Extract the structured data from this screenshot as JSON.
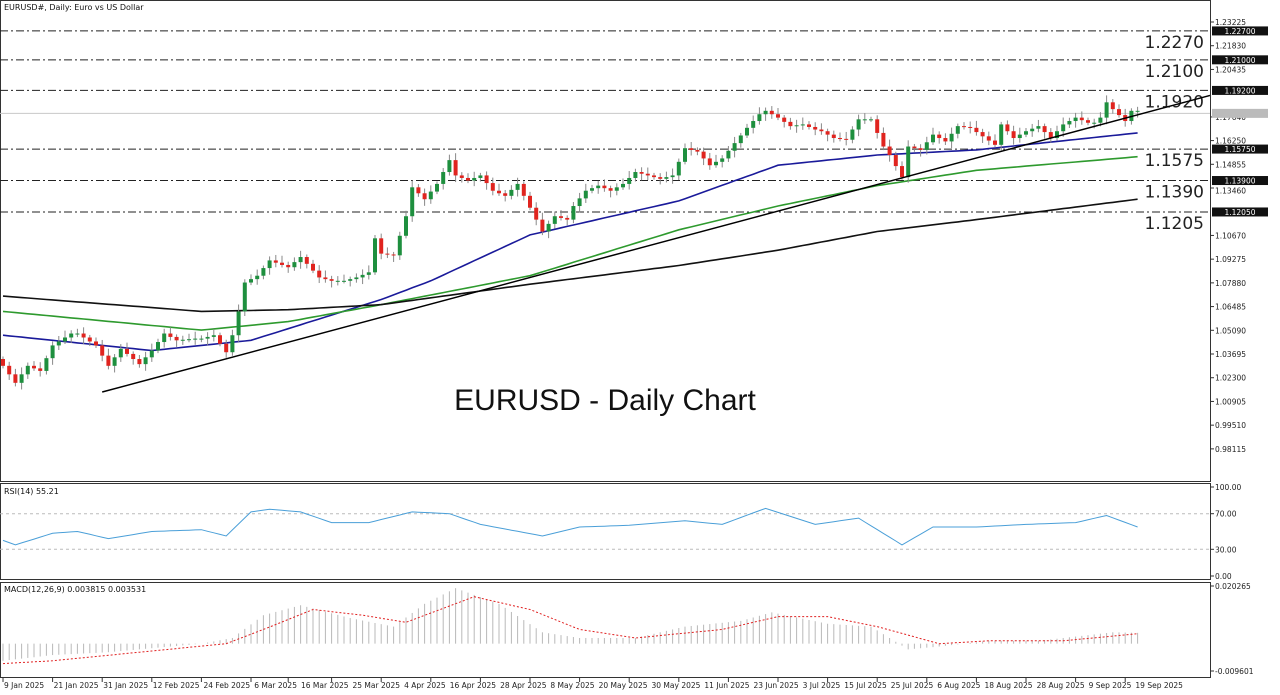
{
  "header": {
    "symbol_title": "EURUSD#, Daily:  Euro vs US Dollar"
  },
  "overlay_title": "EURUSD - Daily Chart",
  "colors": {
    "bull": "#1e8f3e",
    "bear": "#e0241f",
    "ma50": "#1a1a9a",
    "ma100": "#2e9a2e",
    "ma200": "#111111",
    "rsi": "#4a9fd8",
    "macd_signal": "#e02020",
    "macd_hist": "#b8b8b8"
  },
  "rsi": {
    "label": "RSI(14) 55.21",
    "ticks": [
      "100.00",
      "70.00",
      "30.00",
      "0.00"
    ]
  },
  "macd": {
    "label": "MACD(12,26,9) 0.003815 0.003531",
    "ticks": [
      "0.020265",
      "-0.009601"
    ]
  },
  "chart_data": {
    "type": "candlestick",
    "title": "EURUSD - Daily Chart",
    "ylim": [
      0.98115,
      1.23225
    ],
    "price_ticks": [
      "1.23225",
      "1.21830",
      "1.20435",
      "1.17640",
      "1.16250",
      "1.14855",
      "1.13460",
      "1.10670",
      "1.09275",
      "1.07880",
      "1.06485",
      "1.05090",
      "1.03695",
      "1.02300",
      "1.00905",
      "0.99510",
      "0.98115"
    ],
    "levels": [
      {
        "price": 1.227,
        "label": "1.2270",
        "box": "1.22700"
      },
      {
        "price": 1.21,
        "label": "1.2100",
        "box": "1.21000"
      },
      {
        "price": 1.192,
        "label": "1.1920",
        "box": "1.19200"
      },
      {
        "price": 1.1575,
        "label": "1.1575",
        "box": "1.15750"
      },
      {
        "price": 1.139,
        "label": "1.1390",
        "box": "1.13900"
      },
      {
        "price": 1.1205,
        "label": "1.1205",
        "box": "1.12050"
      }
    ],
    "current_price_approx": 1.1785,
    "x_labels": [
      "9 Jan 2025",
      "21 Jan 2025",
      "31 Jan 2025",
      "12 Feb 2025",
      "24 Feb 2025",
      "6 Mar 2025",
      "16 Mar 2025",
      "25 Mar 2025",
      "4 Apr 2025",
      "16 Apr 2025",
      "28 Apr 2025",
      "8 May 2025",
      "20 May 2025",
      "30 May 2025",
      "11 Jun 2025",
      "23 Jun 2025",
      "3 Jul 2025",
      "15 Jul 2025",
      "25 Jul 2025",
      "6 Aug 2025",
      "18 Aug 2025",
      "28 Aug 2025",
      "9 Sep 2025",
      "19 Sep 2025"
    ],
    "closes": [
      [
        "2025-01-09",
        1.03
      ],
      [
        "2025-01-13",
        1.02
      ],
      [
        "2025-01-15",
        1.03
      ],
      [
        "2025-01-17",
        1.027
      ],
      [
        "2025-01-21",
        1.042
      ],
      [
        "2025-01-24",
        1.049
      ],
      [
        "2025-01-27",
        1.049
      ],
      [
        "2025-01-30",
        1.042
      ],
      [
        "2025-02-03",
        1.03
      ],
      [
        "2025-02-05",
        1.04
      ],
      [
        "2025-02-10",
        1.031
      ],
      [
        "2025-02-12",
        1.039
      ],
      [
        "2025-02-14",
        1.049
      ],
      [
        "2025-02-18",
        1.045
      ],
      [
        "2025-02-21",
        1.046
      ],
      [
        "2025-02-24",
        1.046
      ],
      [
        "2025-02-26",
        1.048
      ],
      [
        "2025-02-28",
        1.038
      ],
      [
        "2025-03-03",
        1.048
      ],
      [
        "2025-03-04",
        1.062
      ],
      [
        "2025-03-05",
        1.079
      ],
      [
        "2025-03-07",
        1.083
      ],
      [
        "2025-03-11",
        1.092
      ],
      [
        "2025-03-14",
        1.088
      ],
      [
        "2025-03-18",
        1.094
      ],
      [
        "2025-03-21",
        1.082
      ],
      [
        "2025-03-25",
        1.08
      ],
      [
        "2025-03-27",
        1.08
      ],
      [
        "2025-03-31",
        1.082
      ],
      [
        "2025-04-02",
        1.085
      ],
      [
        "2025-04-03",
        1.105
      ],
      [
        "2025-04-04",
        1.096
      ],
      [
        "2025-04-08",
        1.095
      ],
      [
        "2025-04-10",
        1.118
      ],
      [
        "2025-04-11",
        1.135
      ],
      [
        "2025-04-15",
        1.128
      ],
      [
        "2025-04-17",
        1.137
      ],
      [
        "2025-04-21",
        1.151
      ],
      [
        "2025-04-22",
        1.142
      ],
      [
        "2025-04-24",
        1.139
      ],
      [
        "2025-04-28",
        1.142
      ],
      [
        "2025-04-30",
        1.133
      ],
      [
        "2025-05-02",
        1.13
      ],
      [
        "2025-05-06",
        1.137
      ],
      [
        "2025-05-08",
        1.123
      ],
      [
        "2025-05-12",
        1.109
      ],
      [
        "2025-05-14",
        1.118
      ],
      [
        "2025-05-16",
        1.116
      ],
      [
        "2025-05-19",
        1.124
      ],
      [
        "2025-05-21",
        1.133
      ],
      [
        "2025-05-23",
        1.136
      ],
      [
        "2025-05-27",
        1.133
      ],
      [
        "2025-05-29",
        1.137
      ],
      [
        "2025-06-02",
        1.144
      ],
      [
        "2025-06-04",
        1.142
      ],
      [
        "2025-06-06",
        1.14
      ],
      [
        "2025-06-10",
        1.142
      ],
      [
        "2025-06-12",
        1.158
      ],
      [
        "2025-06-16",
        1.156
      ],
      [
        "2025-06-18",
        1.148
      ],
      [
        "2025-06-20",
        1.152
      ],
      [
        "2025-06-24",
        1.161
      ],
      [
        "2025-06-26",
        1.17
      ],
      [
        "2025-06-30",
        1.178
      ],
      [
        "2025-07-01",
        1.18
      ],
      [
        "2025-07-03",
        1.176
      ],
      [
        "2025-07-07",
        1.171
      ],
      [
        "2025-07-09",
        1.172
      ],
      [
        "2025-07-11",
        1.169
      ],
      [
        "2025-07-14",
        1.168
      ],
      [
        "2025-07-16",
        1.164
      ],
      [
        "2025-07-18",
        1.163
      ],
      [
        "2025-07-22",
        1.175
      ],
      [
        "2025-07-24",
        1.175
      ],
      [
        "2025-07-28",
        1.159
      ],
      [
        "2025-07-29",
        1.154
      ],
      [
        "2025-07-31",
        1.141
      ],
      [
        "2025-08-01",
        1.159
      ],
      [
        "2025-08-05",
        1.157
      ],
      [
        "2025-08-07",
        1.166
      ],
      [
        "2025-08-11",
        1.162
      ],
      [
        "2025-08-13",
        1.171
      ],
      [
        "2025-08-15",
        1.17
      ],
      [
        "2025-08-19",
        1.165
      ],
      [
        "2025-08-21",
        1.16
      ],
      [
        "2025-08-22",
        1.172
      ],
      [
        "2025-08-26",
        1.164
      ],
      [
        "2025-08-28",
        1.168
      ],
      [
        "2025-09-01",
        1.171
      ],
      [
        "2025-09-03",
        1.164
      ],
      [
        "2025-09-05",
        1.172
      ],
      [
        "2025-09-09",
        1.176
      ],
      [
        "2025-09-11",
        1.173
      ],
      [
        "2025-09-12",
        1.173
      ],
      [
        "2025-09-15",
        1.176
      ],
      [
        "2025-09-16",
        1.185
      ],
      [
        "2025-09-17",
        1.181
      ],
      [
        "2025-09-19",
        1.174
      ],
      [
        "2025-09-22",
        1.18
      ],
      [
        "2025-09-23",
        1.18
      ]
    ],
    "moving_averages": [
      {
        "key": "ma50",
        "points": [
          [
            "2025-01-09",
            1.048
          ],
          [
            "2025-02-12",
            1.039
          ],
          [
            "2025-03-06",
            1.045
          ],
          [
            "2025-04-04",
            1.069
          ],
          [
            "2025-04-16",
            1.08
          ],
          [
            "2025-05-08",
            1.107
          ],
          [
            "2025-06-11",
            1.127
          ],
          [
            "2025-07-03",
            1.148
          ],
          [
            "2025-07-25",
            1.154
          ],
          [
            "2025-08-18",
            1.157
          ],
          [
            "2025-09-23",
            1.167
          ]
        ]
      },
      {
        "key": "ma100",
        "points": [
          [
            "2025-01-09",
            1.062
          ],
          [
            "2025-02-24",
            1.051
          ],
          [
            "2025-03-16",
            1.056
          ],
          [
            "2025-04-04",
            1.066
          ],
          [
            "2025-05-08",
            1.083
          ],
          [
            "2025-06-11",
            1.11
          ],
          [
            "2025-07-03",
            1.124
          ],
          [
            "2025-07-25",
            1.136
          ],
          [
            "2025-08-18",
            1.145
          ],
          [
            "2025-09-23",
            1.153
          ]
        ]
      },
      {
        "key": "ma200",
        "points": [
          [
            "2025-01-09",
            1.071
          ],
          [
            "2025-02-24",
            1.062
          ],
          [
            "2025-03-16",
            1.063
          ],
          [
            "2025-04-04",
            1.066
          ],
          [
            "2025-05-08",
            1.078
          ],
          [
            "2025-06-11",
            1.089
          ],
          [
            "2025-07-03",
            1.098
          ],
          [
            "2025-07-25",
            1.109
          ],
          [
            "2025-08-18",
            1.116
          ],
          [
            "2025-09-23",
            1.128
          ]
        ]
      }
    ],
    "trendline": {
      "start": [
        "2025-01-31",
        1.0146
      ],
      "end": [
        "2025-09-19",
        1.1757
      ]
    },
    "rsi_values": [
      [
        "2025-01-09",
        40
      ],
      [
        "2025-01-13",
        35
      ],
      [
        "2025-01-21",
        48
      ],
      [
        "2025-01-27",
        50
      ],
      [
        "2025-02-03",
        42
      ],
      [
        "2025-02-12",
        50
      ],
      [
        "2025-02-24",
        52
      ],
      [
        "2025-02-28",
        45
      ],
      [
        "2025-03-06",
        72
      ],
      [
        "2025-03-11",
        75
      ],
      [
        "2025-03-18",
        72
      ],
      [
        "2025-03-25",
        60
      ],
      [
        "2025-04-02",
        60
      ],
      [
        "2025-04-11",
        72
      ],
      [
        "2025-04-21",
        70
      ],
      [
        "2025-04-28",
        58
      ],
      [
        "2025-05-12",
        45
      ],
      [
        "2025-05-20",
        55
      ],
      [
        "2025-05-30",
        57
      ],
      [
        "2025-06-12",
        62
      ],
      [
        "2025-06-20",
        58
      ],
      [
        "2025-07-01",
        76
      ],
      [
        "2025-07-11",
        58
      ],
      [
        "2025-07-22",
        65
      ],
      [
        "2025-07-31",
        35
      ],
      [
        "2025-08-07",
        55
      ],
      [
        "2025-08-18",
        55
      ],
      [
        "2025-08-28",
        58
      ],
      [
        "2025-09-09",
        60
      ],
      [
        "2025-09-16",
        68
      ],
      [
        "2025-09-23",
        55
      ]
    ],
    "macd_main": [
      [
        "2025-01-09",
        -0.006
      ],
      [
        "2025-01-21",
        -0.004
      ],
      [
        "2025-02-03",
        -0.003
      ],
      [
        "2025-02-24",
        0.0
      ],
      [
        "2025-03-03",
        0.002
      ],
      [
        "2025-03-10",
        0.01
      ],
      [
        "2025-03-18",
        0.0135
      ],
      [
        "2025-03-28",
        0.009
      ],
      [
        "2025-04-08",
        0.006
      ],
      [
        "2025-04-15",
        0.014
      ],
      [
        "2025-04-22",
        0.0195
      ],
      [
        "2025-05-01",
        0.014
      ],
      [
        "2025-05-12",
        0.004
      ],
      [
        "2025-05-20",
        0.002
      ],
      [
        "2025-06-02",
        0.002
      ],
      [
        "2025-06-12",
        0.006
      ],
      [
        "2025-06-25",
        0.008
      ],
      [
        "2025-07-02",
        0.011
      ],
      [
        "2025-07-15",
        0.007
      ],
      [
        "2025-07-24",
        0.006
      ],
      [
        "2025-08-01",
        -0.002
      ],
      [
        "2025-08-08",
        -0.001
      ],
      [
        "2025-08-20",
        0.001
      ],
      [
        "2025-09-01",
        0.001
      ],
      [
        "2025-09-17",
        0.004
      ],
      [
        "2025-09-23",
        0.0038
      ]
    ],
    "macd_signal": [
      [
        "2025-01-09",
        -0.007
      ],
      [
        "2025-01-21",
        -0.006
      ],
      [
        "2025-02-10",
        -0.003
      ],
      [
        "2025-02-28",
        0.0
      ],
      [
        "2025-03-10",
        0.005
      ],
      [
        "2025-03-20",
        0.012
      ],
      [
        "2025-04-01",
        0.01
      ],
      [
        "2025-04-10",
        0.0075
      ],
      [
        "2025-04-25",
        0.0165
      ],
      [
        "2025-05-08",
        0.012
      ],
      [
        "2025-05-20",
        0.005
      ],
      [
        "2025-06-02",
        0.002
      ],
      [
        "2025-06-20",
        0.005
      ],
      [
        "2025-07-03",
        0.0095
      ],
      [
        "2025-07-15",
        0.0095
      ],
      [
        "2025-07-25",
        0.006
      ],
      [
        "2025-08-08",
        0.0
      ],
      [
        "2025-08-20",
        0.001
      ],
      [
        "2025-09-05",
        0.001
      ],
      [
        "2025-09-23",
        0.0035
      ]
    ]
  }
}
